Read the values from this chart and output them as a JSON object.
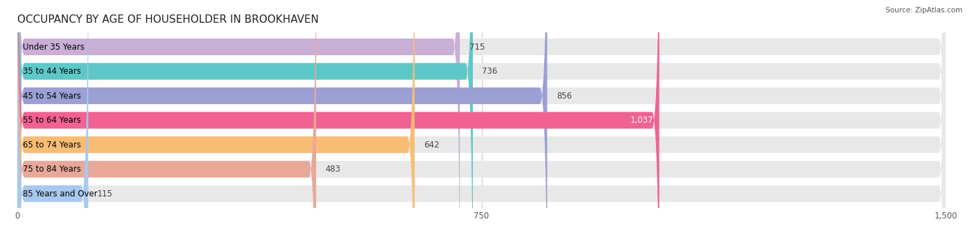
{
  "title": "OCCUPANCY BY AGE OF HOUSEHOLDER IN BROOKHAVEN",
  "source": "Source: ZipAtlas.com",
  "categories": [
    "Under 35 Years",
    "35 to 44 Years",
    "45 to 54 Years",
    "55 to 64 Years",
    "65 to 74 Years",
    "75 to 84 Years",
    "85 Years and Over"
  ],
  "values": [
    715,
    736,
    856,
    1037,
    642,
    483,
    115
  ],
  "bar_colors": [
    "#c9aed6",
    "#5ec8c8",
    "#9b9fd4",
    "#f06292",
    "#f9bc74",
    "#e8a898",
    "#a8c8f0"
  ],
  "bar_bg_color": "#e8e8e8",
  "value_labels": [
    "715",
    "736",
    "856",
    "1,037",
    "642",
    "483",
    "115"
  ],
  "xlim": [
    0,
    1500
  ],
  "xticks": [
    0,
    750,
    1500
  ],
  "xticklabels": [
    "0",
    "750",
    "1,500"
  ],
  "title_fontsize": 11,
  "label_fontsize": 8.5,
  "value_fontsize": 8.5,
  "bar_height": 0.68,
  "background_color": "#ffffff",
  "rounding_size": 12
}
